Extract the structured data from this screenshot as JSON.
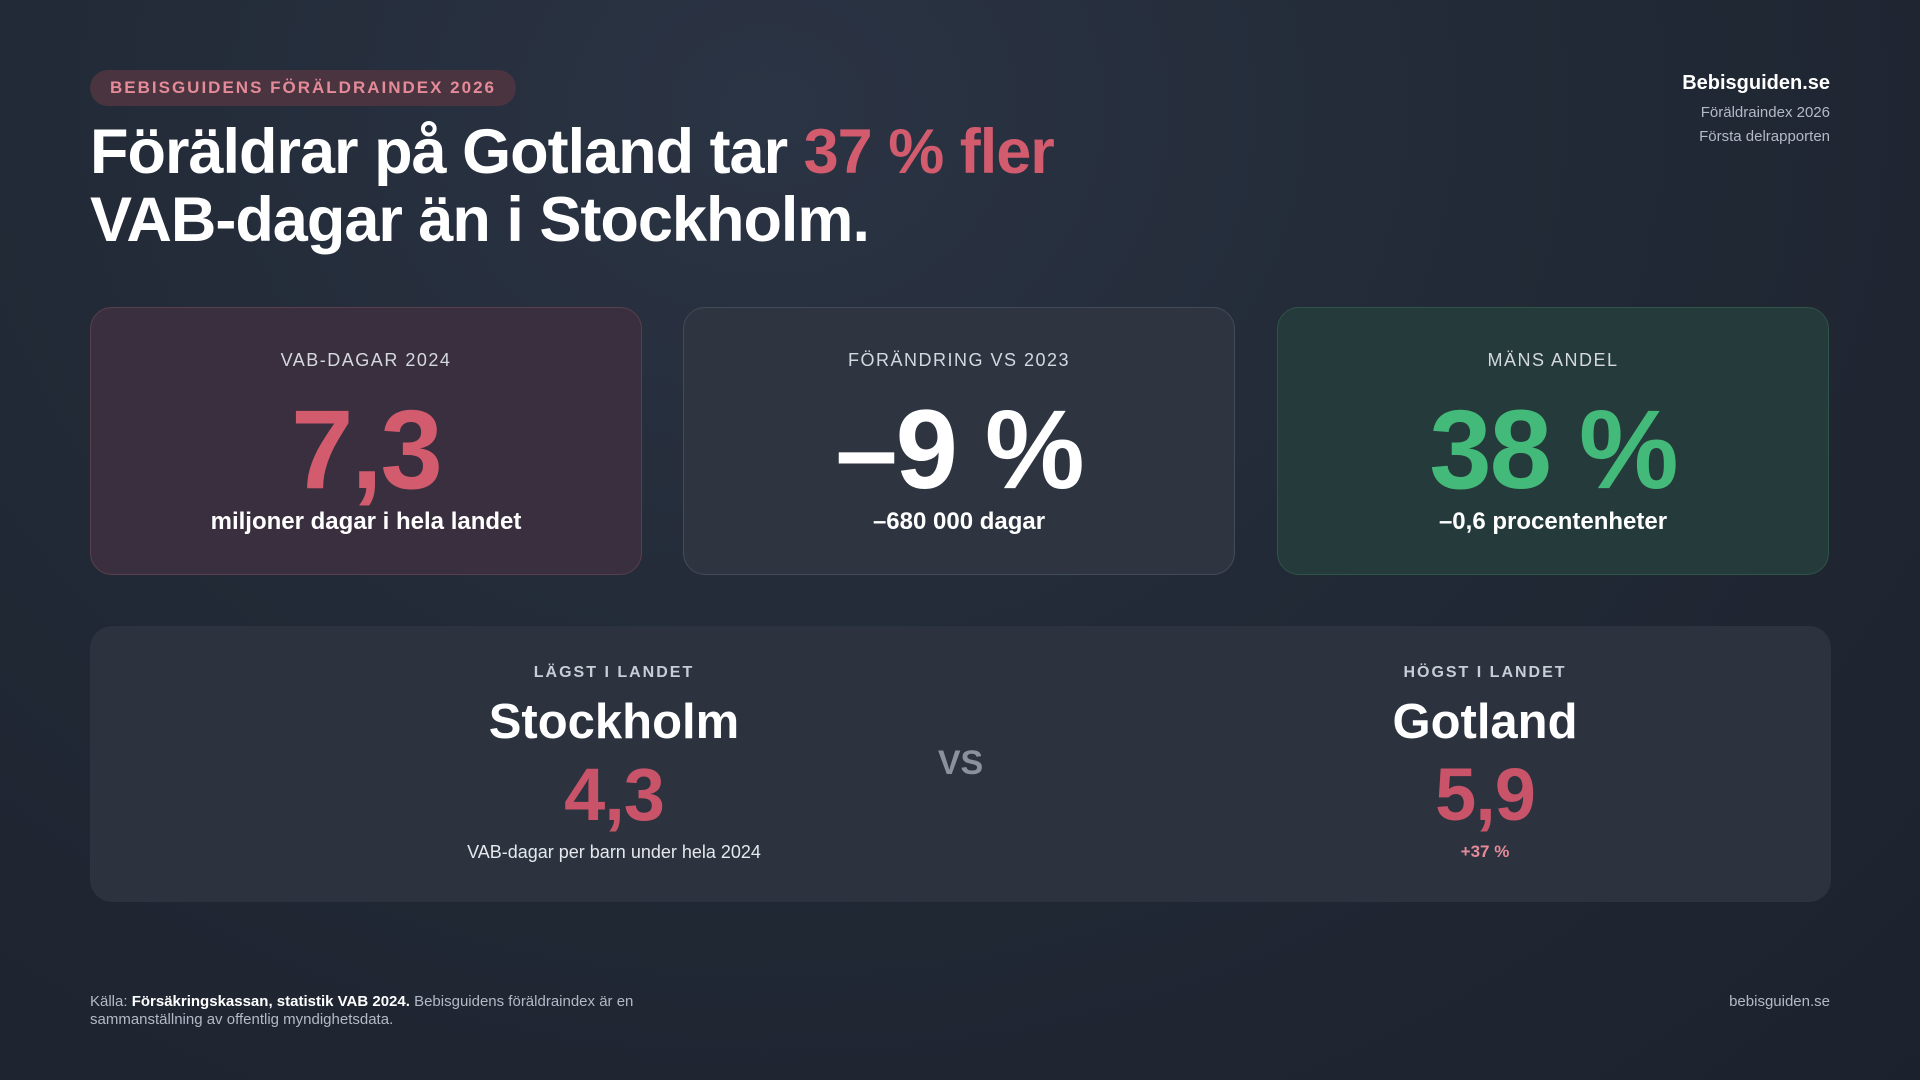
{
  "badge": "BEBISGUIDENS FÖRÄLDRAINDEX 2026",
  "headline": {
    "part1": "Föräldrar på Gotland tar ",
    "accent": "37 % fler",
    "part2": "VAB-dagar än i Stockholm."
  },
  "brand": {
    "name": "Bebisguiden.se",
    "line1": "Föräldraindex 2026",
    "line2": "Första delrapporten"
  },
  "cards": [
    {
      "label": "VAB-DAGAR 2024",
      "value": "7,3",
      "sub": "miljoner dagar i hela landet",
      "color": "#d35b6e"
    },
    {
      "label": "FÖRÄNDRING VS 2023",
      "value": "–9 %",
      "sub": "–680 000 dagar",
      "color": "#ffffff"
    },
    {
      "label": "MÄNS ANDEL",
      "value": "38 %",
      "sub": "–0,6 procentenheter",
      "color": "#43b97a"
    }
  ],
  "comparison": {
    "lowest": {
      "tag": "LÄGST I LANDET",
      "place": "Stockholm",
      "value": "4,3",
      "note": "VAB-dagar per barn under hela 2024"
    },
    "vs": "VS",
    "highest": {
      "tag": "HÖGST I LANDET",
      "place": "Gotland",
      "value": "5,9",
      "note": "+37 %"
    }
  },
  "footer": {
    "source_prefix": "Källa: ",
    "source_bold": "Försäkringskassan, statistik VAB 2024.",
    "source_rest": " Bebisguidens föräldraindex är en sammanställning av offentlig myndighetsdata.",
    "site": "bebisguiden.se"
  }
}
